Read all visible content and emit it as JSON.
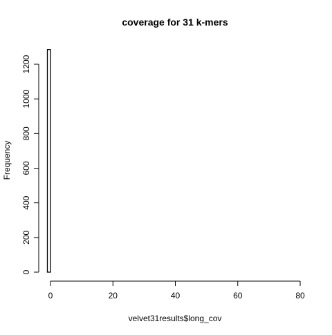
{
  "chart_data": {
    "type": "bar",
    "title": "coverage for 31 k-mers",
    "xlabel": "velvet31results$long_cov",
    "ylabel": "Frequency",
    "x_ticks": [
      0,
      20,
      40,
      60,
      80
    ],
    "y_ticks": [
      0,
      200,
      400,
      600,
      800,
      1000,
      1200
    ],
    "xlim": [
      0,
      80
    ],
    "ylim": [
      0,
      1285
    ],
    "bins": [
      {
        "from": -1,
        "to": 0,
        "count": 1285
      }
    ],
    "grid": false,
    "legend": "none"
  }
}
